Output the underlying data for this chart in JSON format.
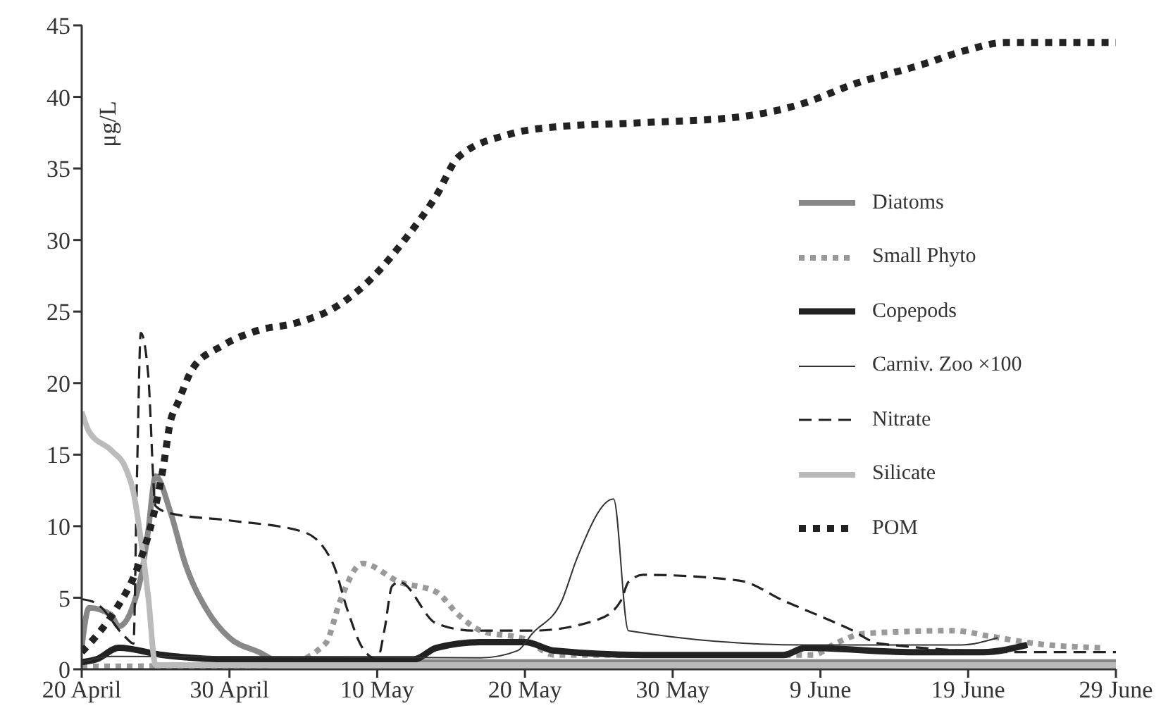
{
  "chart_data": {
    "type": "line",
    "ylabel": "μg/L",
    "xlim": [
      "--04-20",
      "--06-29"
    ],
    "xticks": [
      {
        "value": "--04-20",
        "label": "20 April"
      },
      {
        "value": "--04-30",
        "label": "30 April"
      },
      {
        "value": "--05-10",
        "label": "10 May"
      },
      {
        "value": "--05-20",
        "label": "20 May"
      },
      {
        "value": "--05-30",
        "label": "30 May"
      },
      {
        "value": "--06-09",
        "label": "9 June"
      },
      {
        "value": "--06-19",
        "label": "19 June"
      },
      {
        "value": "--06-29",
        "label": "29 June"
      }
    ],
    "ylim": [
      0,
      45
    ],
    "yticks": [
      0,
      5,
      10,
      15,
      20,
      25,
      30,
      35,
      40,
      45
    ],
    "grid": false,
    "legend": "right",
    "marker": "none",
    "series": [
      {
        "name": "Diatoms",
        "color": "#888888",
        "line_style": "solid",
        "x": [
          "--04-20",
          "--04-20T12:00",
          "--04-22",
          "--04-22T12:00",
          "--04-24",
          "--04-24T12:00",
          "--04-25",
          "--04-26",
          "--04-27",
          "--04-28T12:00",
          "--04-30",
          "--05-02",
          "--05-03T12:00",
          "--06-29"
        ],
        "values": [
          1.5,
          4.3,
          3.8,
          3.0,
          6.4,
          9.7,
          13.5,
          11,
          7.4,
          4.1,
          2.2,
          1.2,
          0.5,
          0.5
        ]
      },
      {
        "name": "Small Phyto",
        "color": "#999999",
        "line_style": "dotted",
        "x": [
          "--04-20",
          "--05-03T12:00",
          "--05-06T12:00",
          "--05-07T12:00",
          "--05-09",
          "--05-11T12:00",
          "--05-14",
          "--05-15T12:00",
          "--05-17",
          "--05-20",
          "--05-22",
          "--06-08T12:00",
          "--06-10",
          "--06-12",
          "--06-18",
          "--06-20T12:00",
          "--06-23T12:00",
          "--06-28"
        ],
        "values": [
          0.2,
          0.3,
          1.8,
          4.8,
          7.4,
          6.1,
          5.4,
          3.8,
          2.7,
          2.1,
          1.0,
          1.0,
          1.8,
          2.5,
          2.7,
          2.3,
          1.8,
          1.5
        ]
      },
      {
        "name": "Copepods",
        "color": "#222222",
        "line_style": "solid",
        "x": [
          "--04-20",
          "--04-21",
          "--04-22T12:00",
          "--04-25T12:00",
          "--04-30",
          "--05-12T12:00",
          "--05-14",
          "--05-17",
          "--05-20",
          "--05-22",
          "--05-28",
          "--06-06T12:00",
          "--06-08",
          "--06-15",
          "--06-20",
          "--06-23"
        ],
        "values": [
          0.5,
          0.7,
          1.5,
          1.0,
          0.7,
          0.7,
          1.5,
          1.9,
          1.9,
          1.3,
          1.0,
          1.0,
          1.5,
          1.2,
          1.2,
          1.7
        ]
      },
      {
        "name": "Carniv. Zoo ×100",
        "color": "#333333",
        "line_style": "solid",
        "x": [
          "--04-20",
          "--04-22",
          "--05-17",
          "--05-19T12:00",
          "--05-20T12:00",
          "--05-22T12:00",
          "--05-23T12:00",
          "--05-26",
          "--05-27",
          "--06-08",
          "--06-18T12:00",
          "--06-21"
        ],
        "values": [
          0.5,
          0.9,
          0.8,
          1.3,
          2.5,
          4.8,
          7.7,
          11.9,
          2.7,
          1.7,
          1.7,
          2.2
        ]
      },
      {
        "name": "Nitrate",
        "color": "#222222",
        "line_style": "dashed",
        "x": [
          "--04-20",
          "--04-21",
          "--04-23",
          "--04-23T12:00",
          "--04-23T18:00",
          "--04-24",
          "--04-24T12:00",
          "--04-25",
          "--04-26",
          "--04-30",
          "--05-05",
          "--05-07",
          "--05-08",
          "--05-09",
          "--05-10",
          "--05-10T12:00",
          "--05-11",
          "--05-11T12:00",
          "--05-14",
          "--05-16T12:00",
          "--05-20T12:00",
          "--05-25",
          "--05-26T12:00",
          "--05-27",
          "--05-28",
          "--06-03T12:00",
          "--06-06T12:00",
          "--06-11",
          "--06-13",
          "--06-22T12:00",
          "--06-29"
        ],
        "values": [
          4.9,
          4.6,
          2.2,
          1.8,
          14,
          23.5,
          20.6,
          11.4,
          10.9,
          10.4,
          9.6,
          7.4,
          4.1,
          1.5,
          0.7,
          2.8,
          5.8,
          6.1,
          3.2,
          2.7,
          2.7,
          3.5,
          4.8,
          6.1,
          6.6,
          6.2,
          4.8,
          2.8,
          1.8,
          1.2,
          1.2
        ]
      },
      {
        "name": "Silicate",
        "color": "#bbbbbb",
        "line_style": "solid",
        "x": [
          "--04-20",
          "--04-20T12:00",
          "--04-22",
          "--04-23",
          "--04-23T12:00",
          "--04-24",
          "--04-24T12:00",
          "--04-25",
          "--06-29"
        ],
        "values": [
          18,
          16.6,
          15.3,
          14,
          12.4,
          9.1,
          5.1,
          0.3,
          0.3
        ]
      },
      {
        "name": "POM",
        "color": "#222222",
        "line_style": "dotted",
        "x": [
          "--04-20",
          "--04-22T12:00",
          "--04-23T12:00",
          "--04-25",
          "--04-25T12:00",
          "--04-26",
          "--04-26T12:00",
          "--04-27T12:00",
          "--04-29T12:00",
          "--05-02",
          "--05-04T12:00",
          "--05-07",
          "--05-09T12:00",
          "--05-12",
          "--05-14",
          "--05-15T12:00",
          "--05-19",
          "--05-22",
          "--05-28",
          "--06-03T12:00",
          "--06-08",
          "--06-11",
          "--06-16",
          "--06-19",
          "--06-21T12:00",
          "--06-29"
        ],
        "values": [
          1.2,
          4.5,
          6.4,
          11.4,
          14,
          17.3,
          18.6,
          21,
          22.6,
          23.7,
          24.2,
          25.2,
          27.2,
          30.2,
          33.1,
          35.8,
          37.4,
          37.9,
          38.2,
          38.6,
          39.6,
          40.8,
          42.3,
          43.3,
          43.8,
          43.8
        ]
      }
    ]
  }
}
